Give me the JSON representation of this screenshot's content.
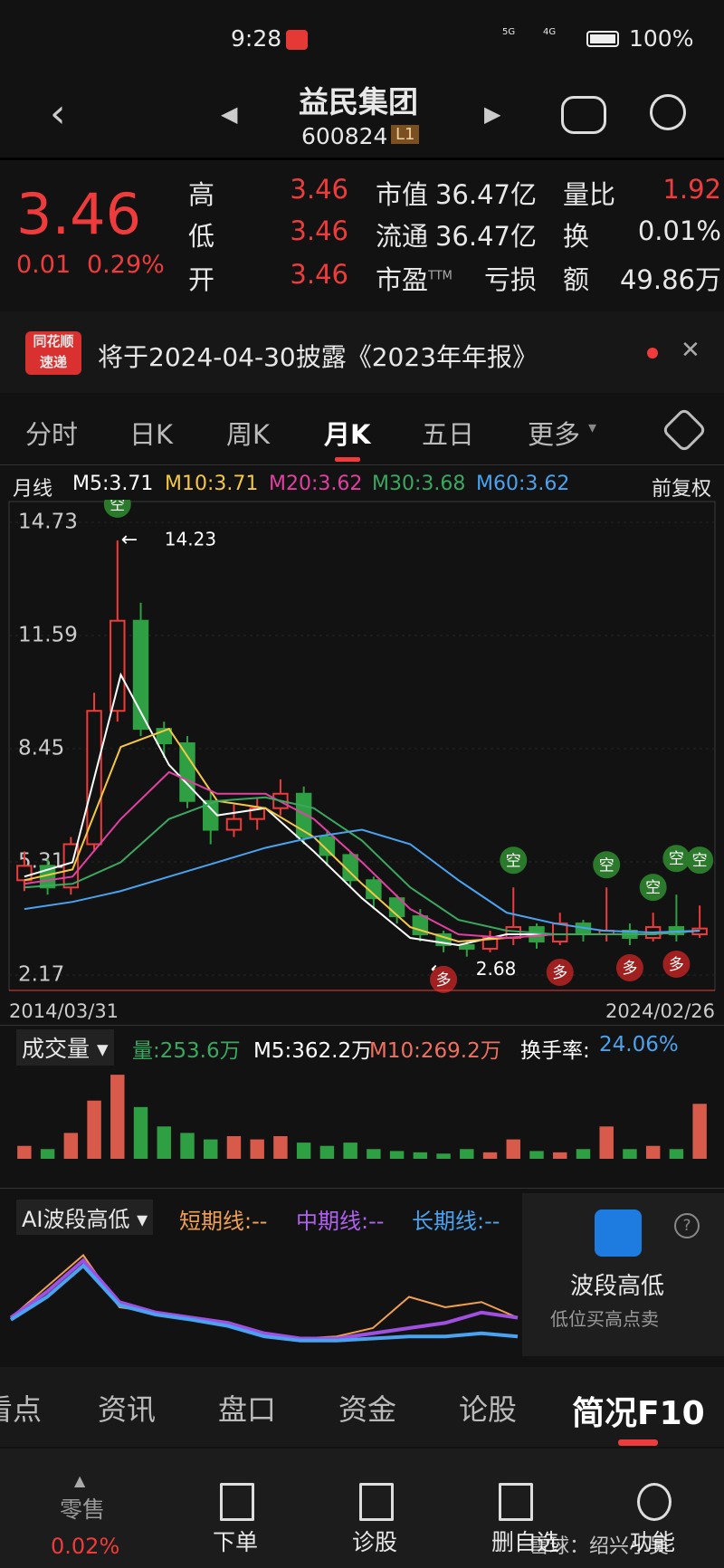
{
  "status": {
    "time": "9:28",
    "signal_a": "5G",
    "signal_b": "4G",
    "battery": "100%"
  },
  "header": {
    "title": "益民集团",
    "code": "600824",
    "level": "L1"
  },
  "quote": {
    "price": "3.46",
    "change": "0.01",
    "pct": "0.29%",
    "pe_suffix": "TTM",
    "rows": [
      [
        "高",
        "3.46",
        "市值",
        "36.47亿",
        "量比",
        "1.92"
      ],
      [
        "低",
        "3.46",
        "流通",
        "36.47亿",
        "换",
        "0.01%"
      ],
      [
        "开",
        "3.46",
        "市盈",
        "亏损",
        "额",
        "49.86万"
      ]
    ]
  },
  "notice": {
    "badge_top": "同花顺",
    "badge_bottom": "速递",
    "text": "将于2024-04-30披露《2023年年报》"
  },
  "tabs": {
    "items": [
      "分时",
      "日K",
      "周K",
      "月K",
      "五日",
      "更多"
    ]
  },
  "ma_legend": {
    "label": "月线",
    "items": [
      "M5:3.71",
      "M10:3.71",
      "M20:3.62",
      "M30:3.68",
      "M60:3.62"
    ],
    "adjust": "前复权"
  },
  "kline": {
    "ylim": [
      2.17,
      14.73
    ],
    "yticks": [
      14.73,
      11.59,
      8.45,
      5.31,
      2.17
    ],
    "high_label": 14.23,
    "low_label": 2.68,
    "start_date": "2014/03/31",
    "end_date": "2024/02/26",
    "signals": {
      "sell": "空",
      "buy": "多"
    },
    "open": [
      4.8,
      5.2,
      4.6,
      5.8,
      9.5,
      12.0,
      9.0,
      8.6,
      7.0,
      6.2,
      6.5,
      6.8,
      7.2,
      6.0,
      5.5,
      4.8,
      4.3,
      3.8,
      3.3,
      3.0,
      2.9,
      3.2,
      3.5,
      3.1,
      3.6,
      3.3,
      3.4,
      3.2,
      3.5,
      3.3
    ],
    "close": [
      5.2,
      4.6,
      5.8,
      9.5,
      12.0,
      9.0,
      8.6,
      7.0,
      6.2,
      6.5,
      6.8,
      7.2,
      6.0,
      5.5,
      4.8,
      4.3,
      3.8,
      3.3,
      3.0,
      2.9,
      3.2,
      3.5,
      3.1,
      3.6,
      3.3,
      3.4,
      3.2,
      3.5,
      3.3,
      3.46
    ],
    "high": [
      5.6,
      5.4,
      6.0,
      10.0,
      14.23,
      12.5,
      9.2,
      8.8,
      7.3,
      6.9,
      7.1,
      7.6,
      7.4,
      6.2,
      5.6,
      4.9,
      4.4,
      4.0,
      3.4,
      3.1,
      3.4,
      4.6,
      3.6,
      3.9,
      3.7,
      4.6,
      3.6,
      3.9,
      4.4,
      4.1
    ],
    "low": [
      4.5,
      4.4,
      4.4,
      5.6,
      9.2,
      8.8,
      8.2,
      6.8,
      5.8,
      6.0,
      6.2,
      6.6,
      5.8,
      5.2,
      4.6,
      4.0,
      3.6,
      3.1,
      2.8,
      2.68,
      2.8,
      3.0,
      2.9,
      3.0,
      3.1,
      3.1,
      3.0,
      3.1,
      3.1,
      3.2
    ],
    "ma": [
      {
        "color": "#ffffff",
        "values": [
          4.9,
          5.3,
          10.5,
          8.0,
          6.6,
          6.8,
          5.6,
          4.3,
          3.2,
          3.0,
          3.3,
          3.3,
          3.3,
          3.3,
          3.4
        ]
      },
      {
        "color": "#f5c842",
        "values": [
          4.8,
          5.1,
          8.5,
          9.0,
          7.0,
          6.8,
          6.0,
          4.7,
          3.5,
          3.1,
          3.2,
          3.3,
          3.3,
          3.3,
          3.4
        ]
      },
      {
        "color": "#e040a0",
        "values": [
          4.7,
          4.9,
          6.5,
          7.8,
          7.2,
          7.2,
          6.5,
          5.3,
          4.0,
          3.3,
          3.2,
          3.3,
          3.3,
          3.3,
          3.4
        ]
      },
      {
        "color": "#3aa860",
        "values": [
          4.6,
          4.7,
          5.3,
          6.5,
          7.0,
          7.1,
          6.8,
          5.9,
          4.6,
          3.7,
          3.4,
          3.3,
          3.3,
          3.3,
          3.4
        ]
      },
      {
        "color": "#4aa3f0",
        "values": [
          4.0,
          4.2,
          4.5,
          4.9,
          5.3,
          5.7,
          6.0,
          6.2,
          5.8,
          4.8,
          3.9,
          3.6,
          3.4,
          3.35,
          3.4
        ]
      }
    ]
  },
  "volume": {
    "title": "成交量",
    "items": [
      "量:253.6万",
      "M5:362.2万",
      "M10:269.2万",
      "换手率:"
    ],
    "turnover": "24.06%",
    "ylim": [
      0,
      1400
    ],
    "values": [
      200,
      150,
      400,
      900,
      1300,
      800,
      500,
      400,
      300,
      350,
      300,
      350,
      250,
      200,
      250,
      150,
      120,
      100,
      80,
      150,
      100,
      300,
      120,
      100,
      150,
      500,
      150,
      200,
      150,
      850
    ]
  },
  "ai": {
    "title": "AI波段高低",
    "short": "短期线:--",
    "mid": "中期线:--",
    "long": "长期线:--",
    "promo_title": "波段高低",
    "promo_sub": "低位买高点卖",
    "ylim": [
      0,
      100
    ],
    "lines": [
      {
        "color": "#f0a050",
        "values": [
          30,
          60,
          90,
          40,
          35,
          30,
          25,
          15,
          10,
          12,
          20,
          50,
          40,
          45,
          30
        ]
      },
      {
        "color": "#a050e0",
        "values": [
          30,
          55,
          85,
          45,
          35,
          30,
          25,
          15,
          10,
          10,
          15,
          20,
          25,
          35,
          30
        ]
      },
      {
        "color": "#4aa3f0",
        "values": [
          28,
          50,
          80,
          42,
          33,
          28,
          22,
          12,
          8,
          8,
          10,
          12,
          12,
          15,
          12
        ]
      }
    ]
  },
  "bottom_tabs": [
    "看点",
    "资讯",
    "盘口",
    "资金",
    "论股",
    "简况F10"
  ],
  "toolbar": {
    "retail": "零售",
    "retail_pct": "0.02%",
    "items": [
      "下单",
      "诊股",
      "删自选",
      "功能"
    ]
  },
  "watermark": "雪球：绍兴小吴"
}
